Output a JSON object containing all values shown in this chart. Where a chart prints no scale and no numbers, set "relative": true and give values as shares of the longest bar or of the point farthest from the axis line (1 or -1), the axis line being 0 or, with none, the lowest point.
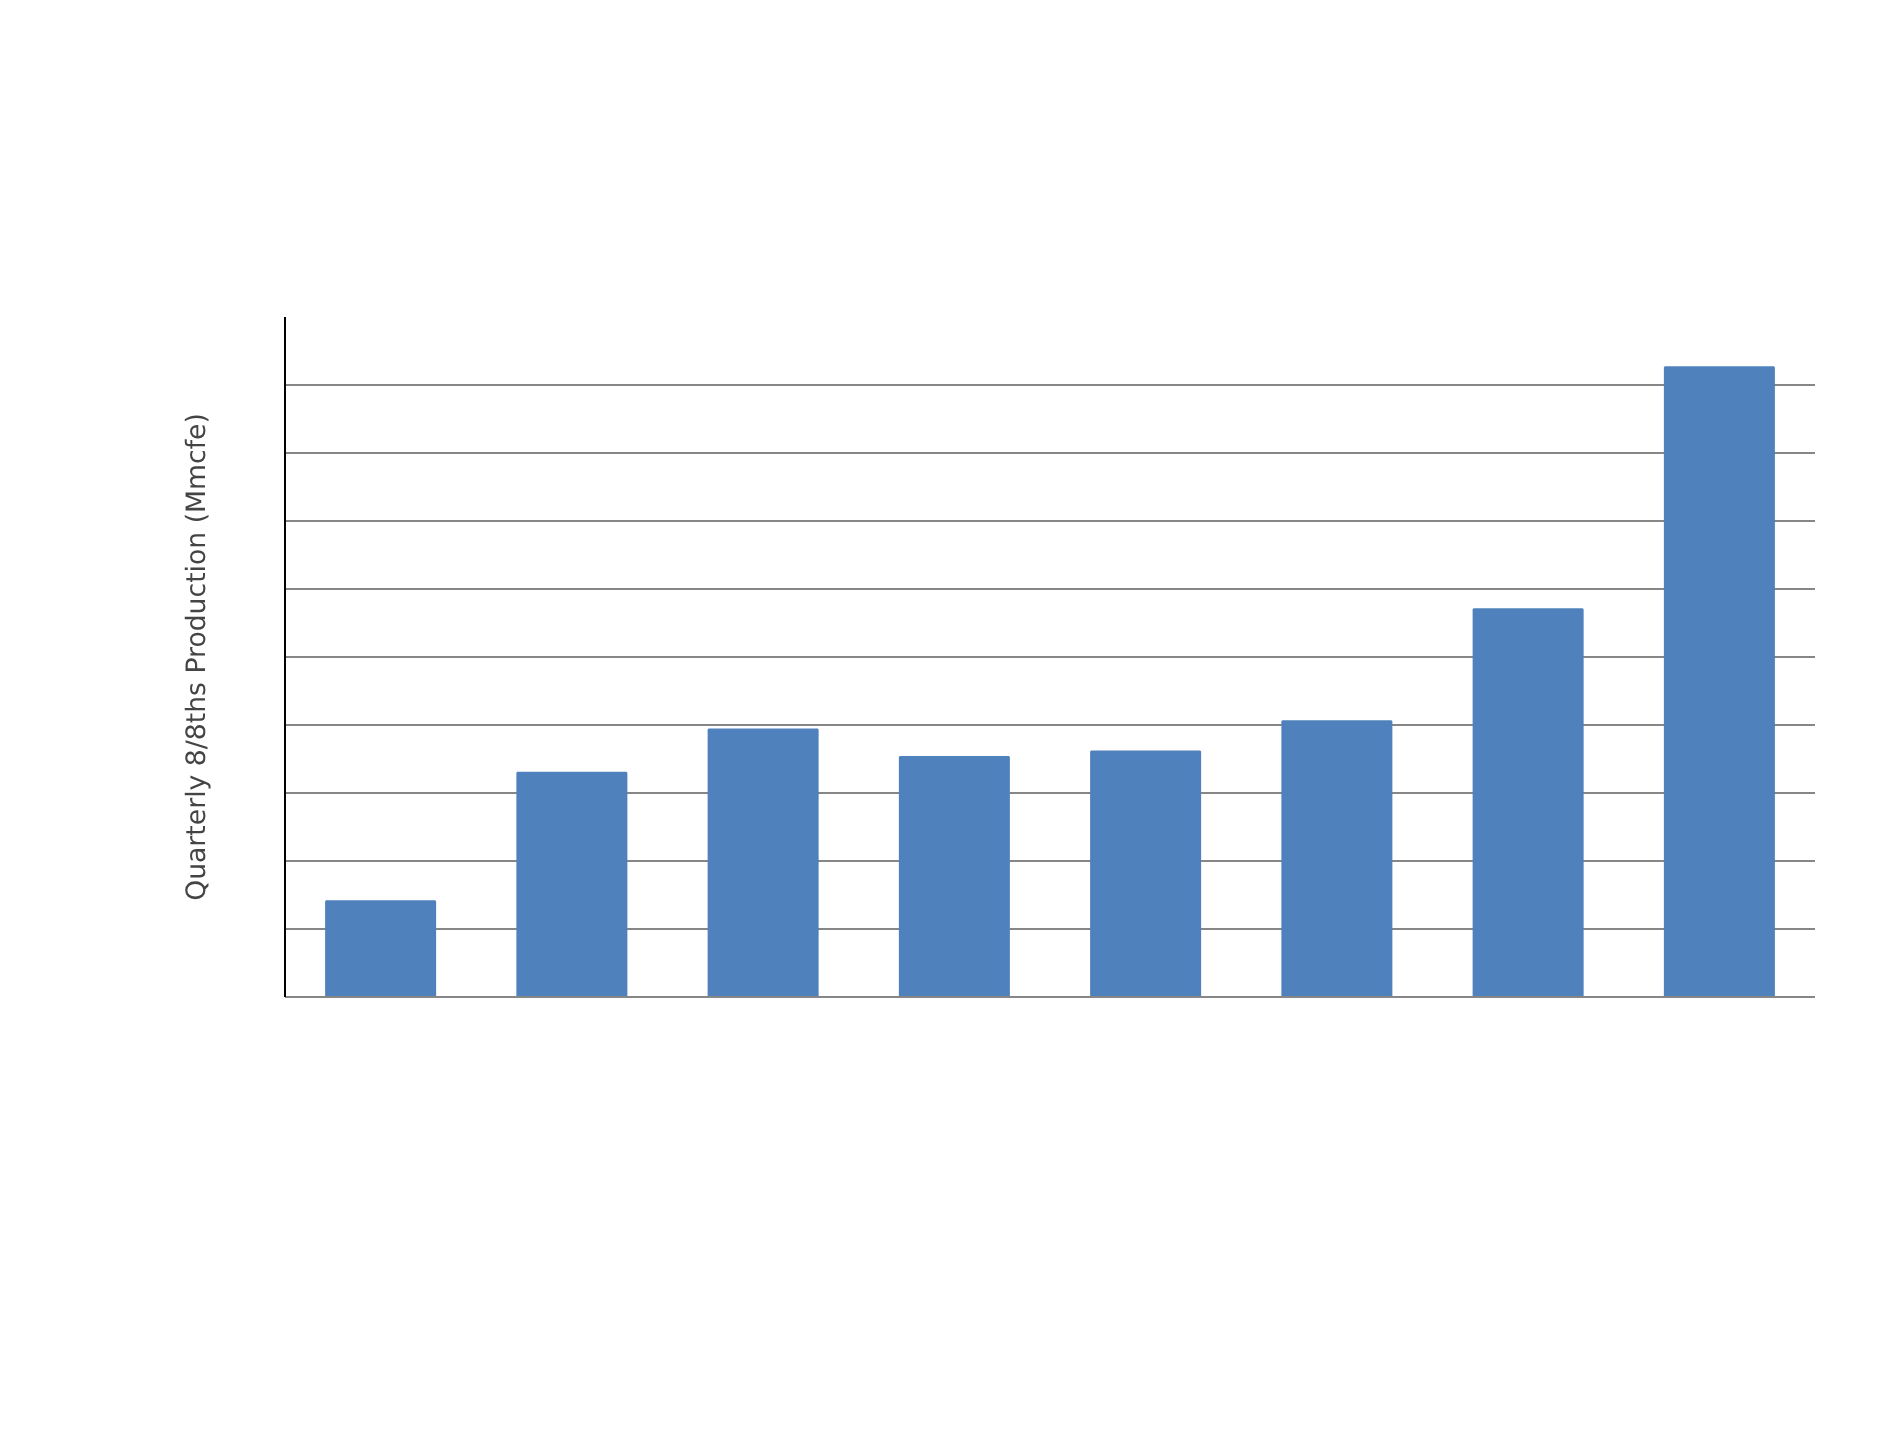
{
  "chart_data": {
    "type": "bar",
    "ylabel": "Quarterly 8/8ths Production (Mmcfe)",
    "categories": [
      null,
      null,
      null,
      null,
      null,
      null,
      null,
      null
    ],
    "series": [
      {
        "color": "#4f81bd",
        "values": [
          0.152,
          0.356,
          0.425,
          0.381,
          0.39,
          0.438,
          0.616,
          1.0
        ]
      }
    ],
    "relative": true,
    "grid": "y"
  }
}
